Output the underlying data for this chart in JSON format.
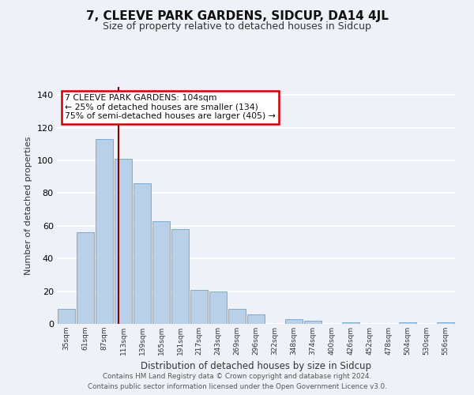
{
  "title": "7, CLEEVE PARK GARDENS, SIDCUP, DA14 4JL",
  "subtitle": "Size of property relative to detached houses in Sidcup",
  "xlabel": "Distribution of detached houses by size in Sidcup",
  "ylabel": "Number of detached properties",
  "bar_labels": [
    "35sqm",
    "61sqm",
    "87sqm",
    "113sqm",
    "139sqm",
    "165sqm",
    "191sqm",
    "217sqm",
    "243sqm",
    "269sqm",
    "296sqm",
    "322sqm",
    "348sqm",
    "374sqm",
    "400sqm",
    "426sqm",
    "452sqm",
    "478sqm",
    "504sqm",
    "530sqm",
    "556sqm"
  ],
  "bar_values": [
    9,
    56,
    113,
    101,
    86,
    63,
    58,
    21,
    20,
    9,
    6,
    0,
    3,
    2,
    0,
    1,
    0,
    0,
    1,
    0,
    1
  ],
  "bar_color": "#b8d0e8",
  "bar_edgecolor": "#7aaece",
  "ylim": [
    0,
    145
  ],
  "yticks": [
    0,
    20,
    40,
    60,
    80,
    100,
    120,
    140
  ],
  "vline_x": 2.77,
  "vline_color": "#8b0000",
  "annotation_text": "7 CLEEVE PARK GARDENS: 104sqm\n← 25% of detached houses are smaller (134)\n75% of semi-detached houses are larger (405) →",
  "annotation_box_color": "#ffffff",
  "annotation_box_edgecolor": "#cc0000",
  "footer_line1": "Contains HM Land Registry data © Crown copyright and database right 2024.",
  "footer_line2": "Contains public sector information licensed under the Open Government Licence v3.0.",
  "bg_color": "#eef2f8",
  "plot_bg_color": "#eef2f8",
  "grid_color": "#ffffff",
  "title_fontsize": 11,
  "subtitle_fontsize": 9
}
